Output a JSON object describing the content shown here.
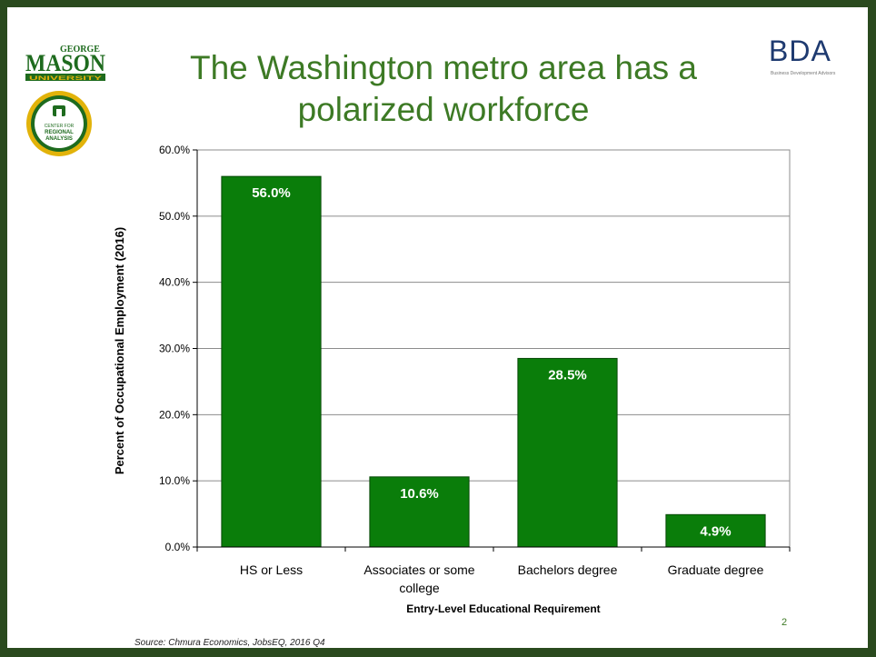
{
  "title_line1": "The Washington metro area has a",
  "title_line2": "polarized workforce",
  "logos": {
    "gmu_top": "GEORGE",
    "gmu_main": "MASON",
    "gmu_bottom": "UNIVERSITY",
    "cra_line1": "CENTER FOR",
    "cra_line2": "REGIONAL",
    "cra_line3": "ANALYSIS",
    "bda_main": "BDA",
    "bda_sub": "Business Development Advisors"
  },
  "source": "Source: Chmura Economics, JobsEQ, 2016 Q4",
  "page_number": "2",
  "colors": {
    "bar": "#0a7d0a",
    "bar_outline": "#054805",
    "title": "#3d7a25",
    "border": "#2a4a1e",
    "gmu_green": "#1e6b1e",
    "gmu_gold": "#e2b30a"
  },
  "chart_data": {
    "type": "bar",
    "categories": [
      "HS or Less",
      "Associates or some college",
      "Bachelors degree",
      "Graduate degree"
    ],
    "values": [
      56.0,
      10.6,
      28.5,
      4.9
    ],
    "data_labels": [
      "56.0%",
      "10.6%",
      "28.5%",
      "4.9%"
    ],
    "xlabel": "Entry-Level Educational Requirement",
    "ylabel": "Percent of Occupational  Employment (2016)",
    "ylim": [
      0,
      60
    ],
    "yticks": [
      0,
      10,
      20,
      30,
      40,
      50,
      60
    ],
    "ytick_labels": [
      "0.0%",
      "10.0%",
      "20.0%",
      "30.0%",
      "40.0%",
      "50.0%",
      "60.0%"
    ],
    "grid": true,
    "legend": "none"
  }
}
